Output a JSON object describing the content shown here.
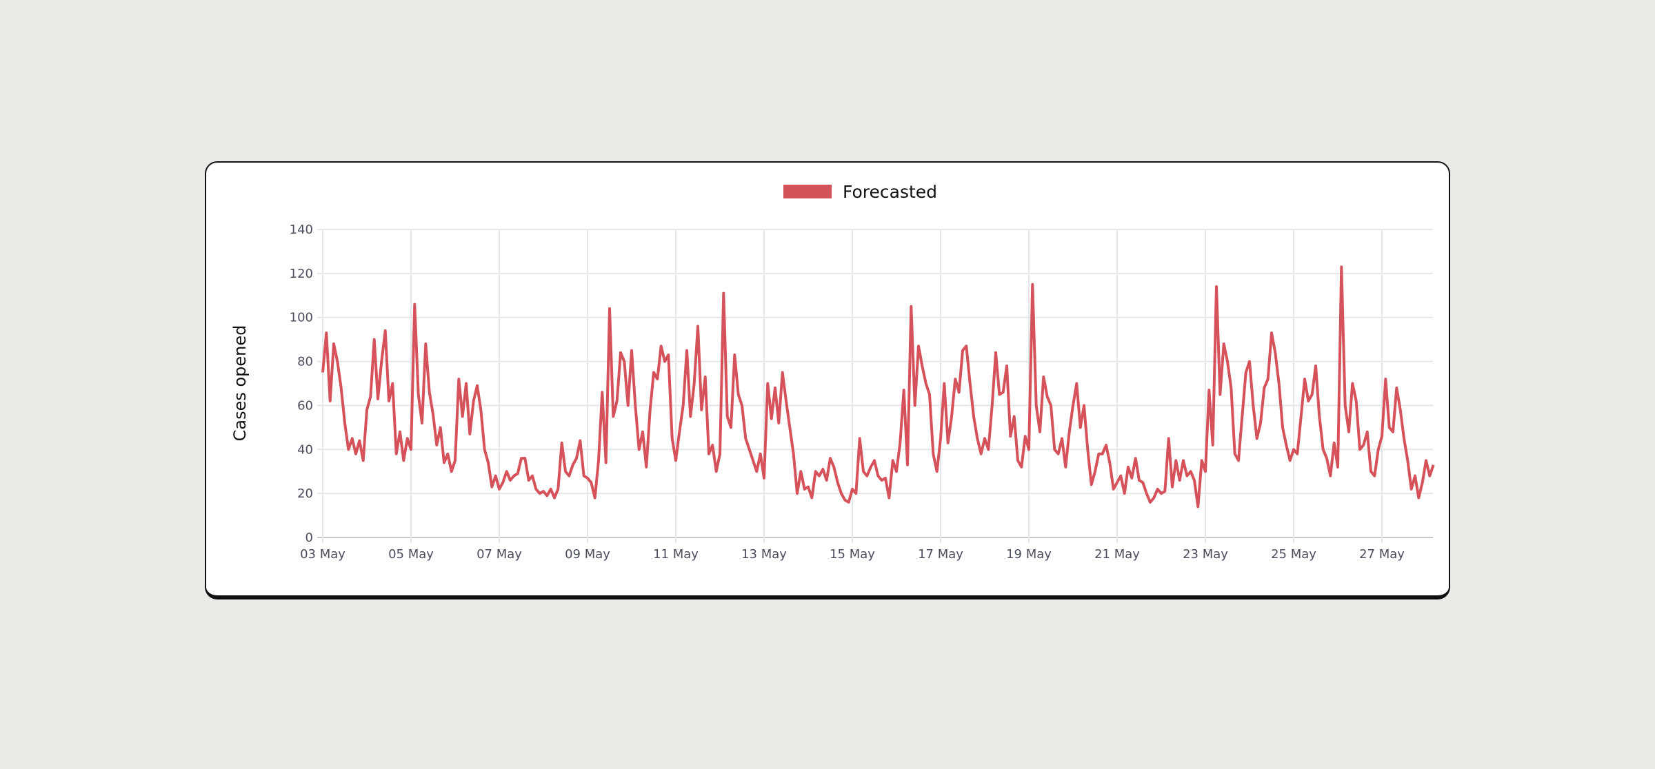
{
  "chart_data": {
    "type": "line",
    "title": "",
    "xlabel": "",
    "ylabel": "Cases opened",
    "legend": {
      "placement": "top",
      "entries": [
        "Forecasted"
      ]
    },
    "grid": true,
    "ylim": [
      0,
      140
    ],
    "yticks": [
      0,
      20,
      40,
      60,
      80,
      100,
      120,
      140
    ],
    "xticks": [
      "03 May",
      "05 May",
      "07 May",
      "09 May",
      "11 May",
      "13 May",
      "15 May",
      "17 May",
      "19 May",
      "21 May",
      "23 May",
      "25 May",
      "27 May"
    ],
    "x_start": "03 May 00:00",
    "x_step": "2h",
    "series": [
      {
        "name": "Forecasted",
        "color": "#d6525b",
        "values": [
          75,
          93,
          62,
          88,
          80,
          68,
          52,
          40,
          45,
          38,
          44,
          35,
          58,
          64,
          90,
          63,
          80,
          94,
          62,
          70,
          38,
          48,
          35,
          45,
          40,
          106,
          65,
          52,
          88,
          66,
          56,
          42,
          50,
          34,
          38,
          30,
          35,
          72,
          55,
          70,
          47,
          62,
          69,
          58,
          40,
          34,
          23,
          28,
          22,
          25,
          30,
          26,
          28,
          29,
          36,
          36,
          26,
          28,
          22,
          20,
          21,
          19,
          22,
          18,
          22,
          43,
          30,
          28,
          33,
          36,
          44,
          28,
          27,
          25,
          18,
          35,
          66,
          34,
          104,
          55,
          62,
          84,
          80,
          60,
          85,
          60,
          40,
          48,
          32,
          58,
          75,
          72,
          87,
          80,
          83,
          45,
          35,
          48,
          60,
          85,
          55,
          70,
          96,
          58,
          73,
          38,
          42,
          30,
          38,
          111,
          55,
          50,
          83,
          65,
          60,
          45,
          40,
          35,
          30,
          38,
          27,
          70,
          54,
          68,
          52,
          75,
          62,
          50,
          38,
          20,
          30,
          22,
          23,
          18,
          30,
          28,
          31,
          26,
          36,
          32,
          25,
          20,
          17,
          16,
          22,
          20,
          45,
          30,
          28,
          32,
          35,
          28,
          26,
          27,
          18,
          35,
          30,
          43,
          67,
          33,
          105,
          60,
          87,
          78,
          70,
          65,
          38,
          30,
          45,
          70,
          43,
          55,
          72,
          66,
          85,
          87,
          70,
          55,
          45,
          38,
          45,
          40,
          60,
          84,
          65,
          66,
          78,
          46,
          55,
          35,
          32,
          46,
          40,
          115,
          60,
          48,
          73,
          64,
          60,
          40,
          38,
          45,
          32,
          48,
          60,
          70,
          50,
          60,
          40,
          24,
          30,
          38,
          38,
          42,
          34,
          22,
          25,
          28,
          20,
          32,
          27,
          36,
          26,
          25,
          20,
          16,
          18,
          22,
          20,
          21,
          45,
          23,
          35,
          26,
          35,
          28,
          30,
          26,
          14,
          35,
          30,
          67,
          42,
          114,
          65,
          88,
          80,
          68,
          38,
          35,
          55,
          75,
          80,
          60,
          45,
          52,
          68,
          72,
          93,
          84,
          70,
          50,
          42,
          35,
          40,
          38,
          55,
          72,
          62,
          65,
          78,
          55,
          40,
          36,
          28,
          43,
          32,
          123,
          60,
          48,
          70,
          62,
          40,
          42,
          48,
          30,
          28,
          40,
          46,
          72,
          50,
          48,
          68,
          58,
          45,
          35,
          22,
          28,
          18,
          25,
          35,
          28,
          33
        ]
      }
    ]
  }
}
